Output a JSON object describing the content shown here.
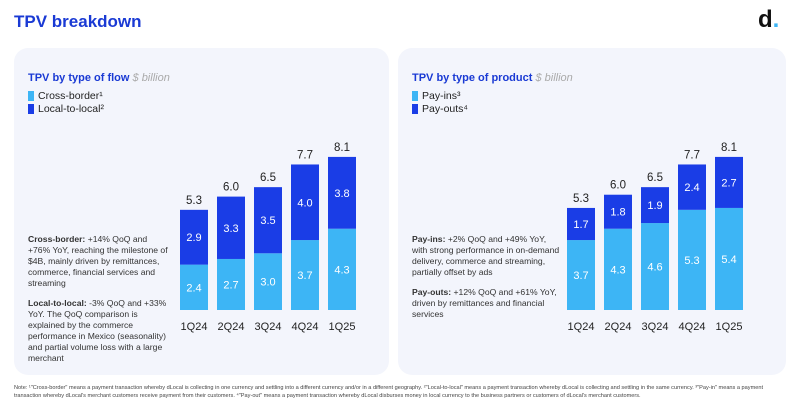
{
  "title": "TPV breakdown",
  "logo": "d.",
  "colors": {
    "light": "#3db5f5",
    "dark": "#1a3de6",
    "accent": "#1a3ad4"
  },
  "chart_data": [
    {
      "type": "bar",
      "stacked": true,
      "title": "TPV by type of flow",
      "unit": "$ billion",
      "categories": [
        "1Q24",
        "2Q24",
        "3Q24",
        "4Q24",
        "1Q25"
      ],
      "series": [
        {
          "name": "Cross-border¹",
          "values": [
            2.4,
            2.7,
            3.0,
            3.7,
            4.3
          ]
        },
        {
          "name": "Local-to-local²",
          "values": [
            2.9,
            3.3,
            3.5,
            4.0,
            3.8
          ]
        }
      ],
      "totals": [
        "5.3",
        "6.0",
        "6.5",
        "7.7",
        "8.1"
      ],
      "notes": [
        {
          "bold": "Cross-border:",
          "text": " +14% QoQ and +76% YoY, reaching the milestone of $4B, mainly driven by remittances, commerce, financial services and streaming"
        },
        {
          "bold": "Local-to-local:",
          "text": " -3% QoQ and +33% YoY. The QoQ comparison is explained by the commerce performance in Mexico (seasonality) and partial volume loss with a large merchant"
        }
      ]
    },
    {
      "type": "bar",
      "stacked": true,
      "title": "TPV by type of product",
      "unit": "$ billion",
      "categories": [
        "1Q24",
        "2Q24",
        "3Q24",
        "4Q24",
        "1Q25"
      ],
      "series": [
        {
          "name": "Pay-ins³",
          "values": [
            3.7,
            4.3,
            4.6,
            5.3,
            5.4
          ]
        },
        {
          "name": "Pay-outs⁴",
          "values": [
            1.7,
            1.8,
            1.9,
            2.4,
            2.7
          ]
        }
      ],
      "totals": [
        "5.3",
        "6.0",
        "6.5",
        "7.7",
        "8.1"
      ],
      "notes": [
        {
          "bold": "Pay-ins:",
          "text": " +2% QoQ and +49% YoY, with strong performance in on-demand delivery, commerce and streaming, partially offset by ads"
        },
        {
          "bold": "Pay-outs:",
          "text": " +12% QoQ and +61% YoY, driven by remittances and financial services"
        }
      ]
    }
  ],
  "footnote": "Note: ¹\"Cross-border\" means a payment transaction whereby dLocal is collecting in one currency and settling into a different currency and/or in a different geography. ²\"Local-to-local\" means a payment transaction whereby dLocal is collecting and settling in the same currency. ³\"Pay-in\" means a payment transaction whereby dLocal's merchant customers receive payment from their customers. ⁴\"Pay-out\" means a payment transaction whereby dLocal disburses money in local currency to the business partners or customers of dLocal's merchant customers."
}
